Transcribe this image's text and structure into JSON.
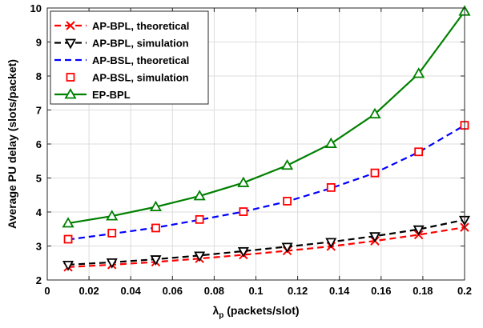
{
  "chart_data": {
    "type": "line",
    "xlabel_symbol": "λ",
    "xlabel_subscript": "p",
    "xlabel_rest": " (packets/slot)",
    "ylabel": "Average PU delay (slots/packet)",
    "xlim": [
      0,
      0.2
    ],
    "ylim": [
      2,
      10
    ],
    "xticks": [
      0,
      0.02,
      0.04,
      0.06,
      0.08,
      0.1,
      0.12,
      0.14,
      0.16,
      0.18,
      0.2
    ],
    "xtick_labels": [
      "0",
      "0.02",
      "0.04",
      "0.06",
      "0.08",
      "0.1",
      "0.12",
      "0.14",
      "0.16",
      "0.18",
      "0.2"
    ],
    "yticks": [
      2,
      3,
      4,
      5,
      6,
      7,
      8,
      9,
      10
    ],
    "ytick_labels": [
      "2",
      "3",
      "4",
      "5",
      "6",
      "7",
      "8",
      "9",
      "10"
    ],
    "grid": true,
    "legend_position": "top-left",
    "x": [
      0.01,
      0.031,
      0.052,
      0.073,
      0.094,
      0.115,
      0.136,
      0.157,
      0.178,
      0.2
    ],
    "series": [
      {
        "name": "AP-BPL, theoretical",
        "color": "#ff0000",
        "line": "dashed",
        "marker": "x",
        "values": [
          2.38,
          2.45,
          2.53,
          2.63,
          2.74,
          2.86,
          2.99,
          3.15,
          3.33,
          3.55
        ]
      },
      {
        "name": "AP-BPL, simulation",
        "color": "#000000",
        "line": "dashed",
        "marker": "triangle-down",
        "values": [
          2.45,
          2.52,
          2.61,
          2.72,
          2.85,
          2.98,
          3.12,
          3.29,
          3.49,
          3.77
        ]
      },
      {
        "name": "AP-BSL, theoretical",
        "color": "#0000ff",
        "line": "dashed",
        "marker": "none",
        "values": [
          3.19,
          3.36,
          3.54,
          3.77,
          4.01,
          4.31,
          4.7,
          5.15,
          5.76,
          6.55
        ]
      },
      {
        "name": "AP-BSL, simulation",
        "color": "#ff0000",
        "line": "none",
        "marker": "square",
        "values": [
          3.2,
          3.38,
          3.53,
          3.78,
          4.01,
          4.32,
          4.72,
          5.15,
          5.77,
          6.55
        ]
      },
      {
        "name": "EP-BPL",
        "color": "#008000",
        "line": "solid",
        "marker": "triangle-up",
        "values": [
          3.67,
          3.88,
          4.15,
          4.47,
          4.86,
          5.37,
          6.01,
          6.88,
          8.07,
          9.9
        ]
      }
    ]
  }
}
